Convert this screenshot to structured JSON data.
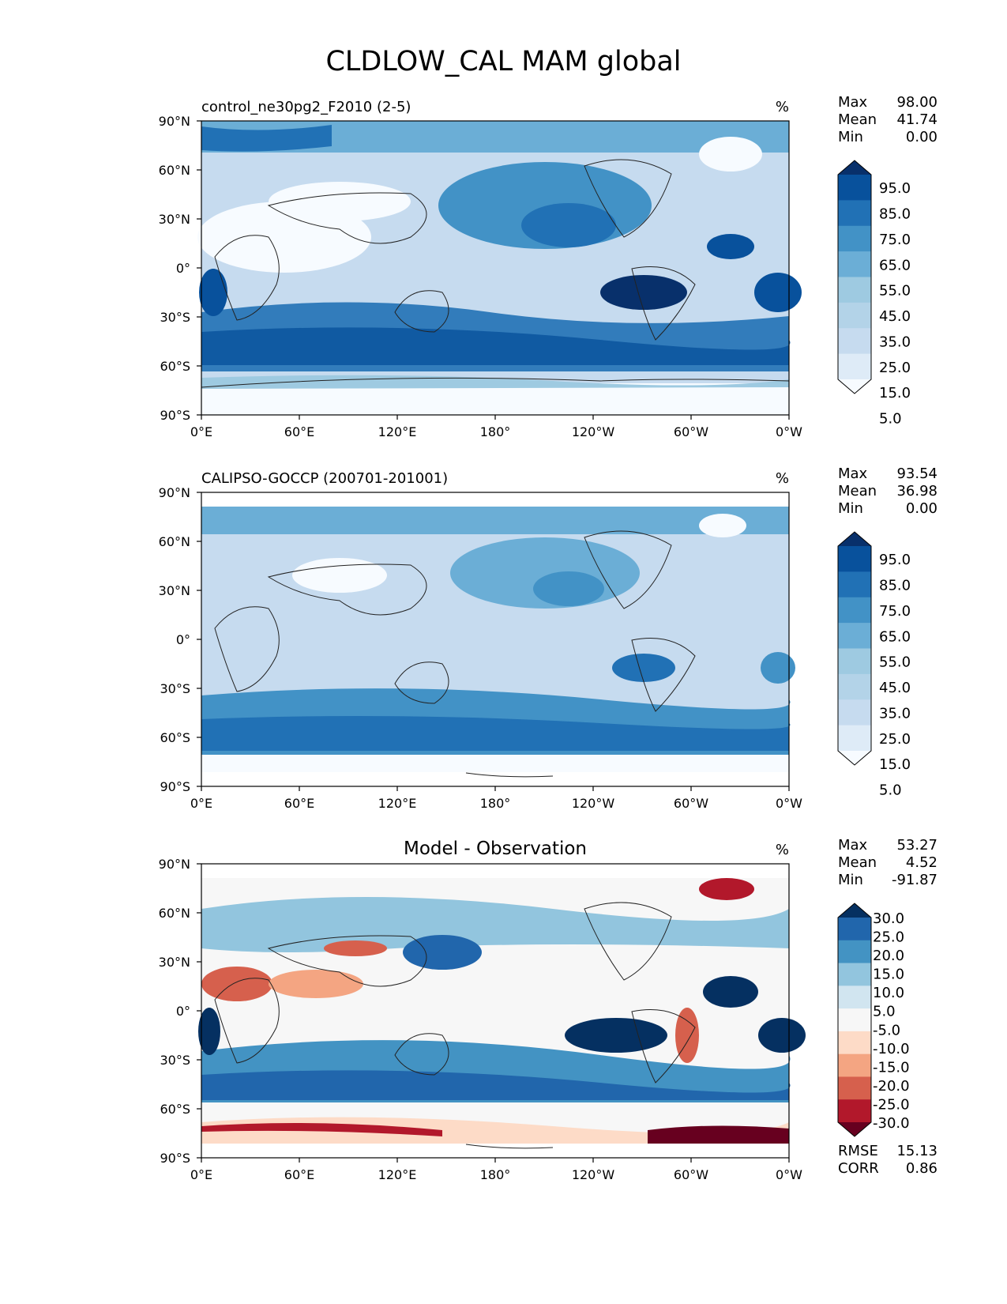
{
  "figure": {
    "title": "CLDLOW_CAL MAM global"
  },
  "colors": {
    "blues": [
      "#f7fbff",
      "#deebf7",
      "#c6dbef",
      "#b3d3e8",
      "#9ecae1",
      "#6baed6",
      "#4292c6",
      "#2171b5",
      "#08519c",
      "#08306b"
    ],
    "diverging": [
      "#67001f",
      "#b2182b",
      "#d6604d",
      "#f4a582",
      "#fddbc7",
      "#f7f7f7",
      "#d1e5f0",
      "#92c5de",
      "#4393c3",
      "#2166ac",
      "#053061"
    ],
    "coast": "#222222"
  },
  "chart_data": [
    {
      "type": "heatmap",
      "name": "control_ne30pg2_F2010 (2-5)",
      "units": "%",
      "xticks": [
        "0°E",
        "60°E",
        "120°E",
        "180°",
        "120°W",
        "60°W",
        "0°W"
      ],
      "yticks": [
        "90°N",
        "60°N",
        "30°N",
        "0°",
        "30°S",
        "60°S",
        "90°S"
      ],
      "stats": {
        "max": "98.00",
        "mean": "41.74",
        "min": "0.00"
      },
      "stat_labels": {
        "max": "Max",
        "mean": "Mean",
        "min": "Min"
      },
      "colorbar_ticks": [
        "95.0",
        "85.0",
        "75.0",
        "65.0",
        "55.0",
        "45.0",
        "35.0",
        "25.0",
        "15.0",
        "5.0"
      ],
      "colorbar_levels": [
        0,
        10,
        20,
        30,
        40,
        50,
        60,
        70,
        80,
        90,
        100
      ]
    },
    {
      "type": "heatmap",
      "name": "CALIPSO-GOCCP (200701-201001)",
      "units": "%",
      "xticks": [
        "0°E",
        "60°E",
        "120°E",
        "180°",
        "120°W",
        "60°W",
        "0°W"
      ],
      "yticks": [
        "90°N",
        "60°N",
        "30°N",
        "0°",
        "30°S",
        "60°S",
        "90°S"
      ],
      "stats": {
        "max": "93.54",
        "mean": "36.98",
        "min": "0.00"
      },
      "stat_labels": {
        "max": "Max",
        "mean": "Mean",
        "min": "Min"
      },
      "colorbar_ticks": [
        "95.0",
        "85.0",
        "75.0",
        "65.0",
        "55.0",
        "45.0",
        "35.0",
        "25.0",
        "15.0",
        "5.0"
      ],
      "colorbar_levels": [
        0,
        10,
        20,
        30,
        40,
        50,
        60,
        70,
        80,
        90,
        100
      ]
    },
    {
      "type": "heatmap",
      "name": "Model - Observation",
      "units": "%",
      "xticks": [
        "0°E",
        "60°E",
        "120°E",
        "180°",
        "120°W",
        "60°W",
        "0°W"
      ],
      "yticks": [
        "90°N",
        "60°N",
        "30°N",
        "0°",
        "30°S",
        "60°S",
        "90°S"
      ],
      "stats": {
        "max": "53.27",
        "mean": "4.52",
        "min": "-91.87"
      },
      "stat_labels": {
        "max": "Max",
        "mean": "Mean",
        "min": "Min"
      },
      "colorbar_ticks": [
        "30.0",
        "25.0",
        "20.0",
        "15.0",
        "10.0",
        "5.0",
        "-5.0",
        "-10.0",
        "-15.0",
        "-20.0",
        "-25.0",
        "-30.0"
      ],
      "colorbar_levels": [
        -30,
        -25,
        -20,
        -15,
        -10,
        -5,
        5,
        10,
        15,
        20,
        25,
        30
      ],
      "extra_stats": {
        "rmse_label": "RMSE",
        "rmse": "15.13",
        "corr_label": "CORR",
        "corr": "0.86"
      }
    }
  ]
}
